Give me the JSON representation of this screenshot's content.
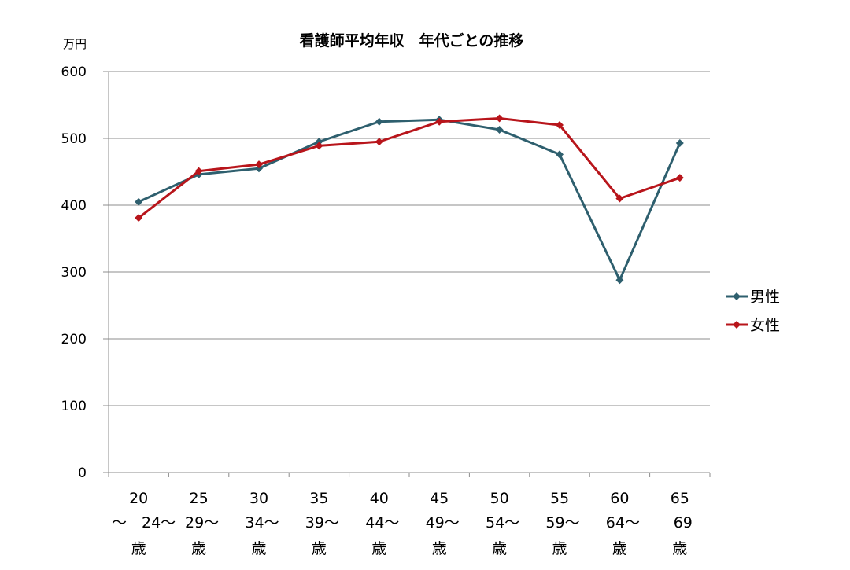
{
  "chart_data": {
    "type": "line",
    "title": "看護師平均年収　年代ごとの推移",
    "unit_label": "万円",
    "xlabel": "",
    "ylabel": "",
    "ylim": [
      0,
      600
    ],
    "yticks": [
      0,
      100,
      200,
      300,
      400,
      500,
      600
    ],
    "grid": true,
    "legend_position": "right",
    "categories": [
      {
        "line1": "20",
        "line2": "～　24～",
        "line3": "歳"
      },
      {
        "line1": "25",
        "line2": "29～",
        "line3": "歳"
      },
      {
        "line1": "30",
        "line2": "34～",
        "line3": "歳"
      },
      {
        "line1": "35",
        "line2": "39～",
        "line3": "歳"
      },
      {
        "line1": "40",
        "line2": "44～",
        "line3": "歳"
      },
      {
        "line1": "45",
        "line2": "49～",
        "line3": "歳"
      },
      {
        "line1": "50",
        "line2": "54～",
        "line3": "歳"
      },
      {
        "line1": "55",
        "line2": "59～",
        "line3": "歳"
      },
      {
        "line1": "60",
        "line2": "64～",
        "line3": "歳"
      },
      {
        "line1": "65",
        "line2": "69",
        "line3": "歳"
      }
    ],
    "series": [
      {
        "name": "男性",
        "color": "#2e5f6e",
        "values": [
          405,
          446,
          455,
          495,
          525,
          528,
          513,
          476,
          288,
          493
        ]
      },
      {
        "name": "女性",
        "color": "#b8151b",
        "values": [
          381,
          451,
          461,
          489,
          495,
          525,
          530,
          520,
          410,
          441
        ]
      }
    ]
  }
}
